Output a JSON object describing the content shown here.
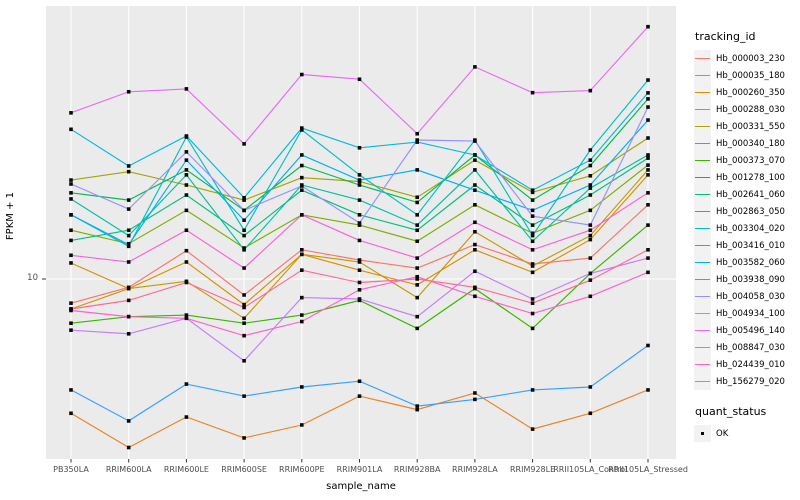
{
  "chart_data": {
    "type": "line",
    "title": "",
    "xlabel": "sample_name",
    "ylabel": "FPKM + 1",
    "y_scale": "log10",
    "y_ticks": [
      "10"
    ],
    "y_tick_values": [
      10
    ],
    "grid": "major-on",
    "legend_position": "right",
    "categories": [
      "PB350LA",
      "RRIM600LA",
      "RRIM600LE",
      "RRIM600SE",
      "RRIM600PE",
      "RRIM901LA",
      "RRIM928BA",
      "RRIM928LA",
      "RRIM928LE",
      "RRII105LA_Control",
      "RRII105LA_Stressed"
    ],
    "legend": {
      "tracking_title": "tracking_id",
      "quant_title": "quant_status",
      "quant_ok_label": "OK"
    },
    "colors": {
      "panel_bg": "#EBEBEB",
      "grid": "#FFFFFF",
      "point": "#0A0A0A",
      "axis_text": "#4D4D4D",
      "tick_mark": "#333333",
      "legend_key_bg": "#F2F2F2"
    },
    "series": [
      {
        "name": "Hb_000003_230",
        "color": "#F8766D",
        "values": [
          8.1,
          9.3,
          12.8,
          8.7,
          12.9,
          11.8,
          11.0,
          13.5,
          11.4,
          12.0,
          19.1
        ]
      },
      {
        "name": "Hb_000035_180",
        "color": "#E88526",
        "values": [
          3.1,
          2.3,
          3.0,
          2.5,
          2.8,
          3.6,
          3.2,
          3.7,
          2.7,
          3.1,
          3.8
        ]
      },
      {
        "name": "Hb_000260_350",
        "color": "#D89000",
        "values": [
          11.5,
          9.2,
          11.6,
          8.0,
          12.4,
          10.8,
          9.5,
          12.9,
          10.6,
          14.1,
          24.8
        ]
      },
      {
        "name": "Hb_000288_030",
        "color": "#C49A00",
        "values": [
          7.7,
          9.2,
          9.8,
          7.1,
          12.4,
          11.6,
          8.5,
          15.1,
          11.2,
          14.6,
          25.9
        ]
      },
      {
        "name": "Hb_000331_550",
        "color": "#A3A500",
        "values": [
          23.7,
          25.5,
          22.7,
          19.9,
          24.2,
          23.4,
          20.4,
          28.2,
          21.3,
          24.6,
          34.2
        ]
      },
      {
        "name": "Hb_000340_180",
        "color": "#7CAE00",
        "values": [
          15.3,
          13.6,
          18.2,
          13.1,
          17.5,
          16.0,
          13.9,
          19.1,
          14.9,
          18.2,
          27.0
        ]
      },
      {
        "name": "Hb_000373_070",
        "color": "#39B600",
        "values": [
          6.8,
          7.2,
          7.3,
          6.8,
          7.3,
          8.3,
          6.5,
          9.2,
          6.5,
          10.5,
          16.0
        ]
      },
      {
        "name": "Hb_001278_100",
        "color": "#00BB4E",
        "values": [
          21.2,
          19.9,
          25.9,
          18.2,
          26.9,
          22.7,
          19.5,
          29.5,
          19.9,
          26.9,
          48.1
        ]
      },
      {
        "name": "Hb_002641_060",
        "color": "#00BF7D",
        "values": [
          14.0,
          15.3,
          20.8,
          14.6,
          21.7,
          17.5,
          15.3,
          22.7,
          16.0,
          20.8,
          28.7
        ]
      },
      {
        "name": "Hb_002863_050",
        "color": "#00C1A3",
        "values": [
          20.1,
          14.6,
          24.8,
          12.9,
          22.7,
          19.9,
          16.0,
          25.9,
          13.9,
          22.1,
          29.5
        ]
      },
      {
        "name": "Hb_003304_020",
        "color": "#00BFC4",
        "values": [
          17.5,
          13.3,
          34.5,
          15.3,
          36.7,
          24.8,
          17.5,
          33.6,
          14.6,
          30.8,
          56.7
        ]
      },
      {
        "name": "Hb_003416_010",
        "color": "#00BAE0",
        "values": [
          36.9,
          26.8,
          34.8,
          20.3,
          37.3,
          31.4,
          33.0,
          29.5,
          21.7,
          28.2,
          50.7
        ]
      },
      {
        "name": "Hb_003582_060",
        "color": "#00B0F6",
        "values": [
          17.5,
          13.5,
          28.2,
          16.7,
          29.5,
          23.7,
          25.9,
          21.7,
          18.2,
          22.7,
          40.0
        ]
      },
      {
        "name": "Hb_003938_090",
        "color": "#35A2FF",
        "values": [
          3.8,
          2.9,
          4.0,
          3.6,
          3.9,
          4.1,
          3.3,
          3.5,
          3.8,
          3.9,
          5.6
        ]
      },
      {
        "name": "Hb_004058_030",
        "color": "#9590FF",
        "values": [
          22.9,
          18.4,
          30.3,
          18.2,
          22.5,
          16.3,
          33.6,
          33.3,
          17.3,
          16.0,
          44.8
        ]
      },
      {
        "name": "Hb_004934_100",
        "color": "#C77CFF",
        "values": [
          6.4,
          6.2,
          7.1,
          4.9,
          8.5,
          8.4,
          7.2,
          10.7,
          8.4,
          10.5,
          12.0
        ]
      },
      {
        "name": "Hb_005496_140",
        "color": "#E76BF3",
        "values": [
          42.6,
          51.2,
          52.5,
          32.5,
          59.5,
          57.1,
          35.5,
          63.6,
          50.8,
          51.7,
          90.3
        ]
      },
      {
        "name": "Hb_008847_030",
        "color": "#FA62DB",
        "values": [
          12.3,
          11.6,
          15.3,
          11.0,
          17.5,
          14.0,
          12.0,
          16.4,
          12.9,
          15.3,
          21.2
        ]
      },
      {
        "name": "Hb_024439_010",
        "color": "#FF61C9",
        "values": [
          7.6,
          7.2,
          7.1,
          6.1,
          6.9,
          9.1,
          10.2,
          8.6,
          7.4,
          8.6,
          10.6
        ]
      },
      {
        "name": "Hb_156279_020",
        "color": "#FF6A98",
        "values": [
          7.7,
          8.3,
          9.7,
          7.8,
          10.8,
          9.7,
          10.0,
          9.3,
          8.1,
          9.9,
          12.9
        ]
      }
    ]
  }
}
